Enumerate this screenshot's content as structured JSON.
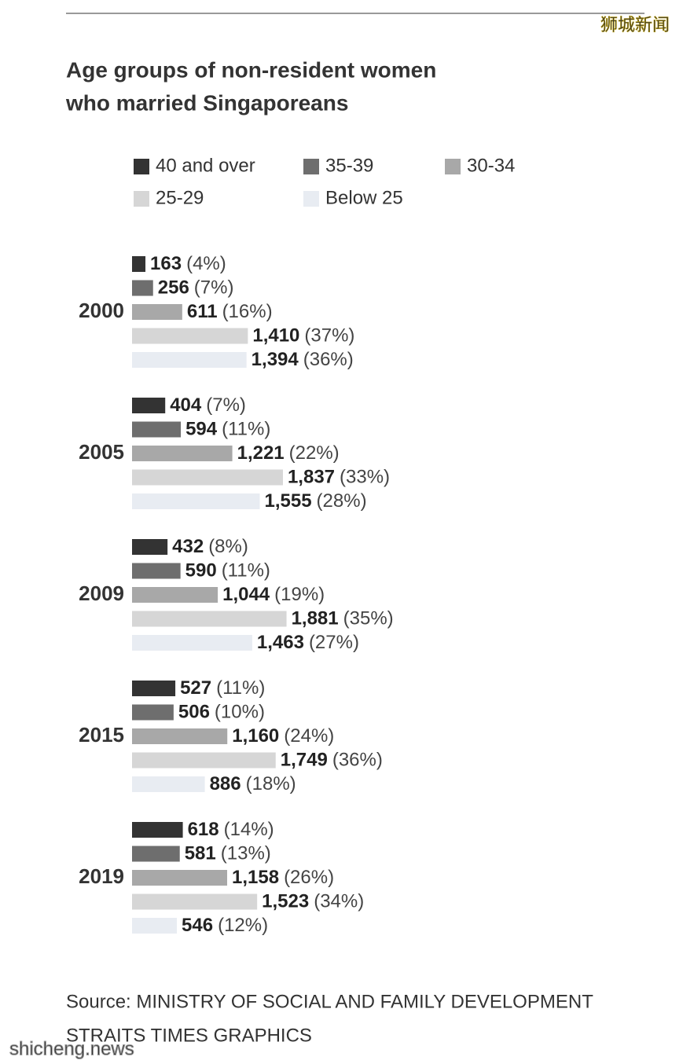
{
  "chart_data": {
    "type": "grouped-hbar",
    "title_lines": [
      "Age groups of non-resident women",
      "who married Singaporeans"
    ],
    "categories": [
      "2000",
      "2005",
      "2009",
      "2015",
      "2019"
    ],
    "series": [
      {
        "name": "40 and over",
        "color": "#333333",
        "values": [
          163,
          404,
          432,
          527,
          618
        ],
        "value_labels": [
          "163",
          "404",
          "432",
          "527",
          "618"
        ],
        "share_labels": [
          "(4%)",
          "(7%)",
          "(8%)",
          "(11%)",
          "(14%)"
        ]
      },
      {
        "name": "35-39",
        "color": "#6e6e6e",
        "values": [
          256,
          594,
          590,
          506,
          581
        ],
        "value_labels": [
          "256",
          "594",
          "590",
          "506",
          "581"
        ],
        "share_labels": [
          "(7%)",
          "(11%)",
          "(11%)",
          "(10%)",
          "(13%)"
        ]
      },
      {
        "name": "30-34",
        "color": "#a8a8a8",
        "values": [
          611,
          1221,
          1044,
          1160,
          1158
        ],
        "value_labels": [
          "611",
          "1,221",
          "1,044",
          "1,160",
          "1,158"
        ],
        "share_labels": [
          "(16%)",
          "(22%)",
          "(19%)",
          "(24%)",
          "(26%)"
        ]
      },
      {
        "name": "25-29",
        "color": "#d6d6d6",
        "values": [
          1410,
          1837,
          1881,
          1749,
          1523
        ],
        "value_labels": [
          "1,410",
          "1,837",
          "1,881",
          "1,749",
          "1,523"
        ],
        "share_labels": [
          "(37%)",
          "(33%)",
          "(35%)",
          "(36%)",
          "(34%)"
        ]
      },
      {
        "name": "Below 25",
        "color": "#e8ecf2",
        "values": [
          1394,
          1555,
          1463,
          886,
          546
        ],
        "value_labels": [
          "1,394",
          "1,555",
          "1,463",
          "886",
          "546"
        ],
        "share_labels": [
          "(36%)",
          "(28%)",
          "(27%)",
          "(18%)",
          "(12%)"
        ]
      }
    ],
    "source_lines": [
      "Source: MINISTRY OF SOCIAL AND FAMILY DEVELOPMENT",
      "STRAITS TIMES GRAPHICS"
    ],
    "watermarks": [
      "狮城新闻",
      "shicheng.news"
    ]
  }
}
